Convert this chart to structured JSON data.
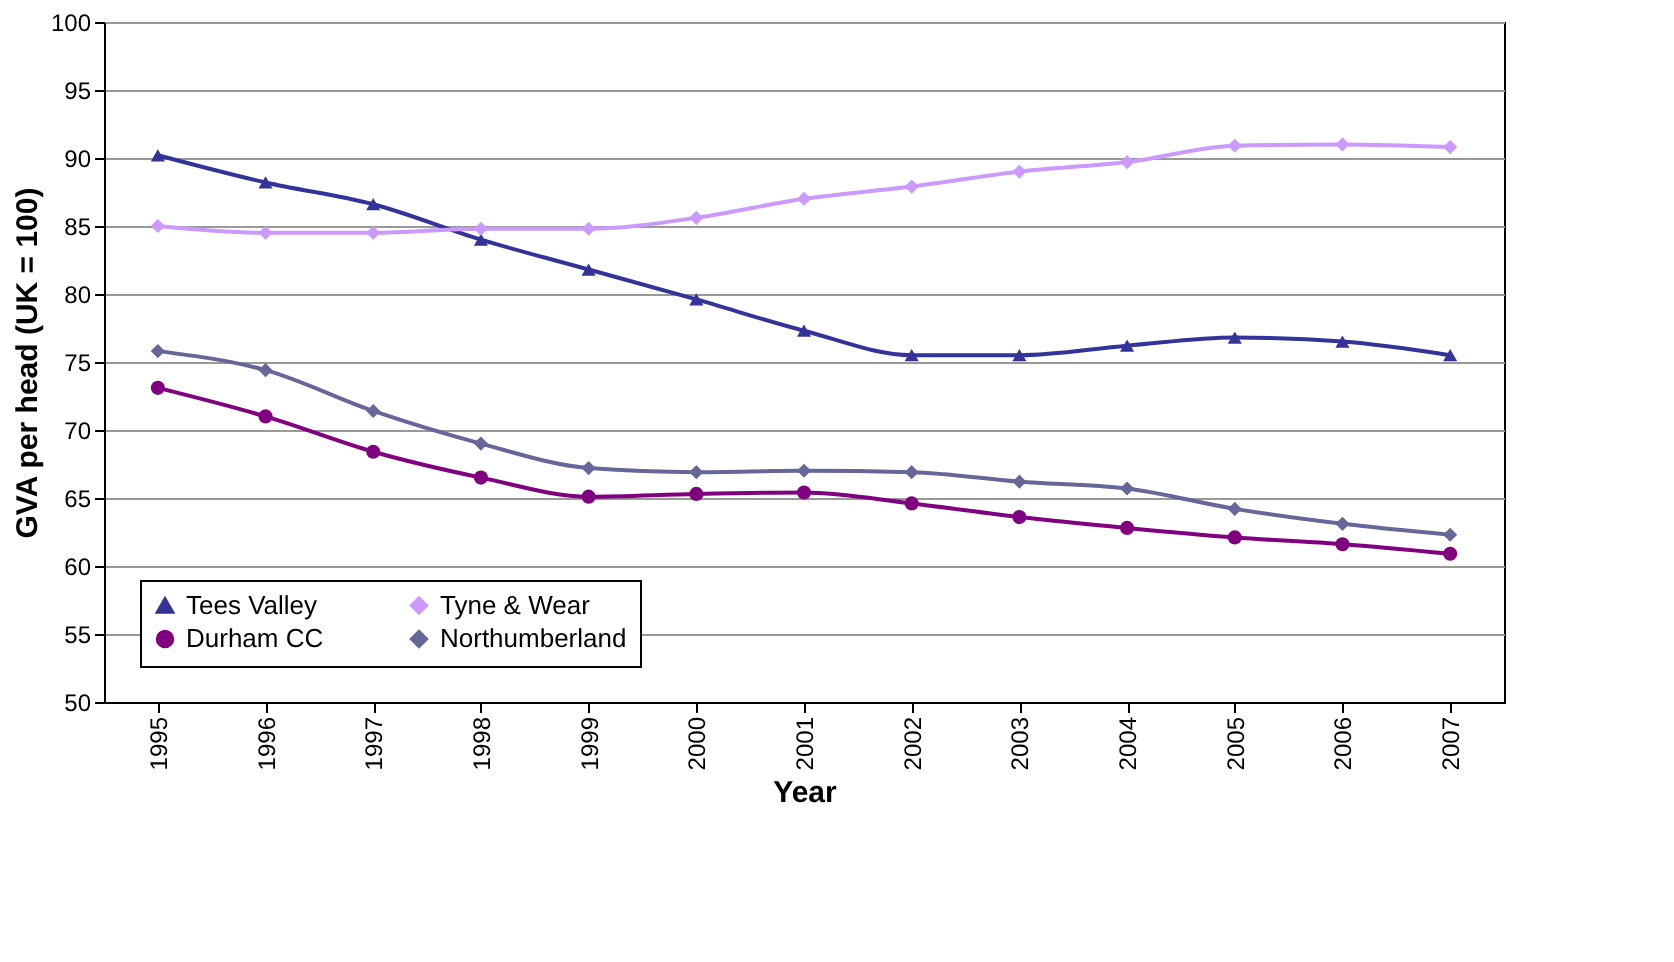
{
  "chart_data": {
    "type": "line",
    "xlabel": "Year",
    "ylabel": "GVA per head (UK = 100)",
    "categories": [
      "1995",
      "1996",
      "1997",
      "1998",
      "1999",
      "2000",
      "2001",
      "2002",
      "2003",
      "2004",
      "2005",
      "2006",
      "2007"
    ],
    "ylim": [
      50,
      100
    ],
    "yticks": [
      50,
      55,
      60,
      65,
      70,
      75,
      80,
      85,
      90,
      95,
      100
    ],
    "grid": "y",
    "legend": "bottom left",
    "series": [
      {
        "name": "Tees Valley",
        "color": "#333399",
        "marker": "triangle",
        "values": [
          90.2,
          88.2,
          86.6,
          84.0,
          81.8,
          79.6,
          77.3,
          75.5,
          75.5,
          76.2,
          76.8,
          76.5,
          75.5
        ]
      },
      {
        "name": "Durham CC",
        "color": "#800080",
        "marker": "circle",
        "values": [
          73.1,
          71.0,
          68.4,
          66.5,
          65.1,
          65.3,
          65.4,
          64.6,
          63.6,
          62.8,
          62.1,
          61.6,
          60.9
        ]
      },
      {
        "name": "Tyne & Wear",
        "color": "#cc99ff",
        "marker": "diamond",
        "values": [
          85.0,
          84.5,
          84.5,
          84.8,
          84.8,
          85.6,
          87.0,
          87.9,
          89.0,
          89.7,
          90.9,
          91.0,
          90.8
        ]
      },
      {
        "name": "Northumberland",
        "color": "#666699",
        "marker": "diamond",
        "values": [
          75.8,
          74.4,
          71.4,
          69.0,
          67.2,
          66.9,
          67.0,
          66.9,
          66.2,
          65.7,
          64.2,
          63.1,
          62.3
        ]
      }
    ]
  }
}
